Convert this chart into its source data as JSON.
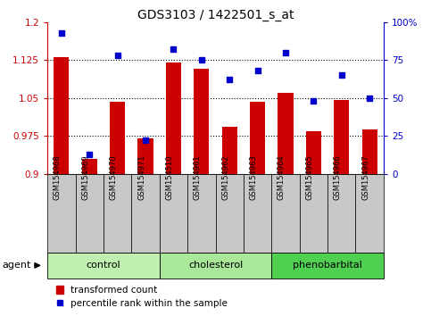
{
  "title": "GDS3103 / 1422501_s_at",
  "categories": [
    "GSM154968",
    "GSM154969",
    "GSM154970",
    "GSM154971",
    "GSM154510",
    "GSM154961",
    "GSM154962",
    "GSM154963",
    "GSM154964",
    "GSM154965",
    "GSM154966",
    "GSM154967"
  ],
  "bar_values": [
    1.13,
    0.93,
    1.043,
    0.97,
    1.12,
    1.108,
    0.993,
    1.043,
    1.06,
    0.985,
    1.046,
    0.988
  ],
  "dot_values": [
    93,
    13,
    78,
    22,
    82,
    75,
    62,
    68,
    80,
    48,
    65,
    50
  ],
  "bar_color": "#cc0000",
  "dot_color": "#0000cc",
  "ylim_left": [
    0.9,
    1.2
  ],
  "ylim_right": [
    0,
    100
  ],
  "yticks_left": [
    0.9,
    0.975,
    1.05,
    1.125,
    1.2
  ],
  "yticks_right": [
    0,
    25,
    50,
    75,
    100
  ],
  "groups": [
    {
      "label": "control",
      "start": 0,
      "end": 4,
      "color": "#c0f0b0"
    },
    {
      "label": "cholesterol",
      "start": 4,
      "end": 8,
      "color": "#a8e898"
    },
    {
      "label": "phenobarbital",
      "start": 8,
      "end": 12,
      "color": "#50d050"
    }
  ],
  "legend_bar_label": "transformed count",
  "legend_dot_label": "percentile rank within the sample",
  "agent_label": "agent",
  "background_color": "#ffffff",
  "tick_label_bg": "#c8c8c8",
  "grid_color": "#000000",
  "figsize": [
    4.83,
    3.54
  ],
  "dpi": 100
}
